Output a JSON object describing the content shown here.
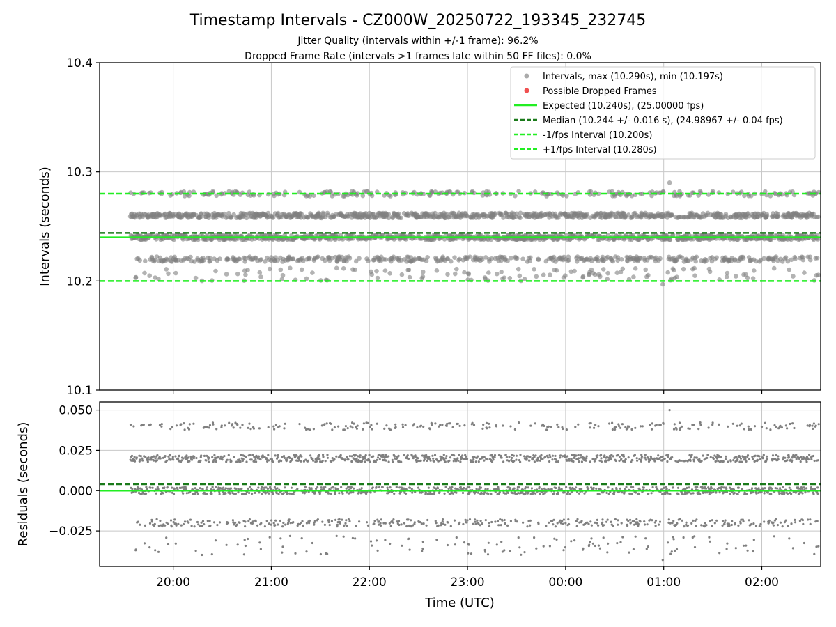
{
  "figure": {
    "title": "Timestamp Intervals - CZ000W_20250722_193345_232745",
    "subtitle_line1": "Jitter Quality (intervals within +/-1 frame): 96.2%",
    "subtitle_line2": "Dropped Frame Rate (intervals >1 frames late within 50 FF files): 0.0%"
  },
  "colors": {
    "points": "#808080",
    "dropped": "#f05050",
    "expected": "#22ee22",
    "median": "#1a7a1a",
    "fps_band": "#22ee22",
    "grid": "#c8c8c8"
  },
  "chart_data": [
    {
      "type": "scatter",
      "panel": "intervals",
      "ylabel": "Intervals (seconds)",
      "xlabel": "",
      "x_unit": "hours (UTC, continuing past midnight)",
      "xlim": [
        19.25,
        26.6
      ],
      "ylim": [
        10.1,
        10.4
      ],
      "x_ticks": [
        20,
        21,
        22,
        23,
        24,
        25,
        26
      ],
      "x_tick_labels": [
        "20:00",
        "21:00",
        "22:00",
        "23:00",
        "00:00",
        "01:00",
        "02:00"
      ],
      "y_ticks": [
        10.1,
        10.2,
        10.3,
        10.4
      ],
      "y_tick_labels": [
        "10.1",
        "10.2",
        "10.3",
        "10.4"
      ],
      "grid": true,
      "x_start": 19.563,
      "x_end": 26.58,
      "n_points": 2470,
      "value_levels": [
        10.22,
        10.24,
        10.26,
        10.28
      ],
      "level_weights": [
        0.17,
        0.37,
        0.36,
        0.1
      ],
      "max": 10.29,
      "min": 10.197,
      "legend_position": "top-right",
      "legend": [
        {
          "label": "Intervals, max (10.290s), min (10.197s)",
          "style": "marker",
          "color": "#aaaaaa"
        },
        {
          "label": "Possible Dropped Frames",
          "style": "marker",
          "color": "#f05050"
        },
        {
          "label": "Expected (10.240s), (25.00000 fps)",
          "style": "solid",
          "color": "#22ee22"
        },
        {
          "label": "Median (10.244 +/- 0.016 s), (24.98967 +/- 0.04 fps)",
          "style": "dashed",
          "color": "#1a7a1a"
        },
        {
          "label": "-1/fps Interval (10.200s)",
          "style": "dashed",
          "color": "#22ee22"
        },
        {
          "label": "+1/fps Interval (10.280s)",
          "style": "dashed",
          "color": "#22ee22"
        }
      ],
      "lines": [
        {
          "name": "Expected",
          "y": 10.24,
          "style": "solid",
          "color": "#22ee22"
        },
        {
          "name": "Median",
          "y": 10.244,
          "style": "dashed",
          "color": "#1a7a1a"
        },
        {
          "name": "-1/fps Interval",
          "y": 10.2,
          "style": "dashed",
          "color": "#22ee22"
        },
        {
          "name": "+1/fps Interval",
          "y": 10.28,
          "style": "dashed",
          "color": "#22ee22"
        }
      ]
    },
    {
      "type": "scatter",
      "panel": "residuals",
      "ylabel": "Residuals (seconds)",
      "xlabel": "Time (UTC)",
      "xlim": [
        19.25,
        26.6
      ],
      "ylim": [
        -0.047,
        0.055
      ],
      "x_ticks": [
        20,
        21,
        22,
        23,
        24,
        25,
        26
      ],
      "x_tick_labels": [
        "20:00",
        "21:00",
        "22:00",
        "23:00",
        "00:00",
        "01:00",
        "02:00"
      ],
      "y_ticks": [
        0.05,
        0.025,
        0.0,
        -0.025
      ],
      "y_tick_labels": [
        "0.050",
        "0.025",
        "0.000",
        "−0.025"
      ],
      "grid": true,
      "residual_of_expected": 10.24,
      "lines": [
        {
          "name": "Zero",
          "y": 0.0,
          "style": "solid",
          "color": "#22ee22"
        },
        {
          "name": "Median offset",
          "y": 0.004,
          "style": "dashed",
          "color": "#1a7a1a"
        }
      ]
    }
  ]
}
